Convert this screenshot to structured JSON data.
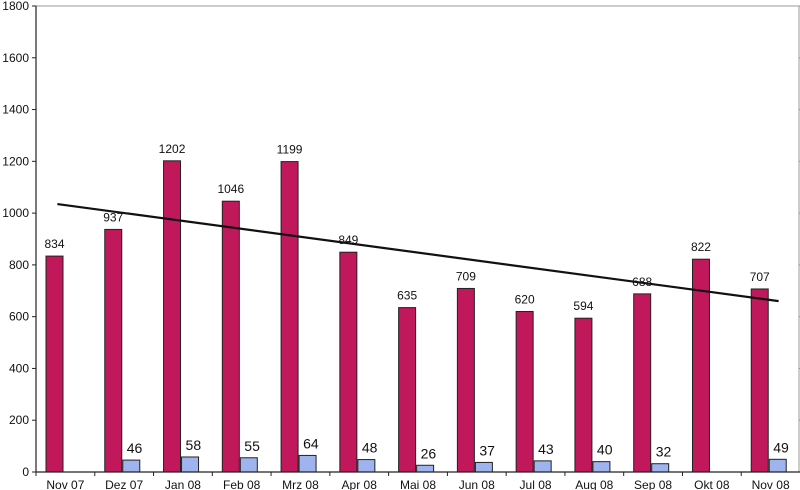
{
  "chart_data": {
    "type": "bar",
    "categories": [
      "Nov 07",
      "Dez 07",
      "Jan 08",
      "Feb 08",
      "Mrz 08",
      "Apr 08",
      "Mai 08",
      "Jun 08",
      "Jul 08",
      "Aug 08",
      "Sep 08",
      "Okt 08",
      "Nov 08"
    ],
    "series": [
      {
        "values": [
          834,
          937,
          1202,
          1046,
          1199,
          849,
          635,
          709,
          620,
          594,
          688,
          822,
          707
        ],
        "color": "#c0185a"
      },
      {
        "values": [
          null,
          46,
          58,
          55,
          64,
          48,
          26,
          37,
          43,
          40,
          32,
          null,
          49
        ],
        "color": "#9fb4ee"
      }
    ],
    "trendline": {
      "start": 1035,
      "end": 660,
      "color": "#111111"
    },
    "ylim": [
      0,
      1800
    ],
    "yticks": [
      0,
      200,
      400,
      600,
      800,
      1000,
      1200,
      1400,
      1600,
      1800
    ],
    "grid": true,
    "title": "",
    "xlabel": "",
    "ylabel": ""
  }
}
